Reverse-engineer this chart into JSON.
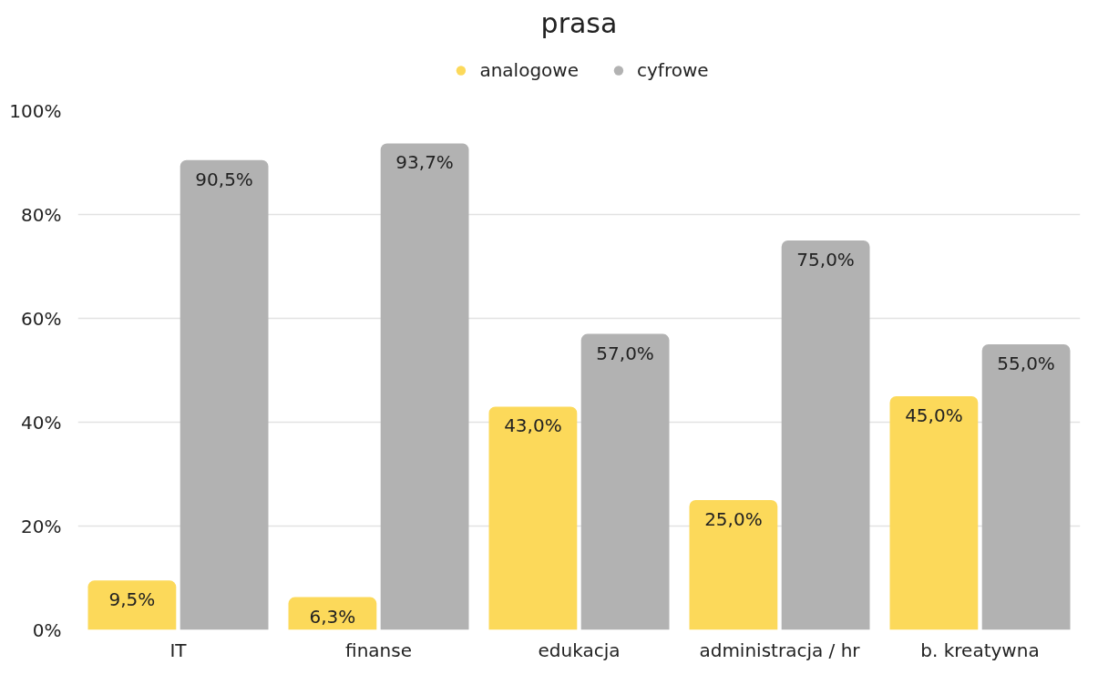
{
  "chart_data": {
    "type": "bar",
    "title": "prasa",
    "categories": [
      "IT",
      "finanse",
      "edukacja",
      "administracja / hr",
      "b. kreatywna"
    ],
    "series": [
      {
        "name": "analogowe",
        "color": "#fcd95a",
        "values": [
          9.5,
          6.3,
          43.0,
          25.0,
          45.0
        ],
        "value_labels": [
          "9,5%",
          "6,3%",
          "43,0%",
          "25,0%",
          "45,0%"
        ]
      },
      {
        "name": "cyfrowe",
        "color": "#b2b2b2",
        "values": [
          90.5,
          93.7,
          57.0,
          75.0,
          55.0
        ],
        "value_labels": [
          "90,5%",
          "93,7%",
          "57,0%",
          "75,0%",
          "55,0%"
        ]
      }
    ],
    "ylim": [
      0,
      100
    ],
    "yticks": [
      {
        "value": 0,
        "label": "0%"
      },
      {
        "value": 20,
        "label": "20%"
      },
      {
        "value": 40,
        "label": "40%"
      },
      {
        "value": 60,
        "label": "60%"
      },
      {
        "value": 80,
        "label": "80%"
      },
      {
        "value": 100,
        "label": "100%"
      }
    ],
    "grid": "y",
    "legend": "top"
  }
}
